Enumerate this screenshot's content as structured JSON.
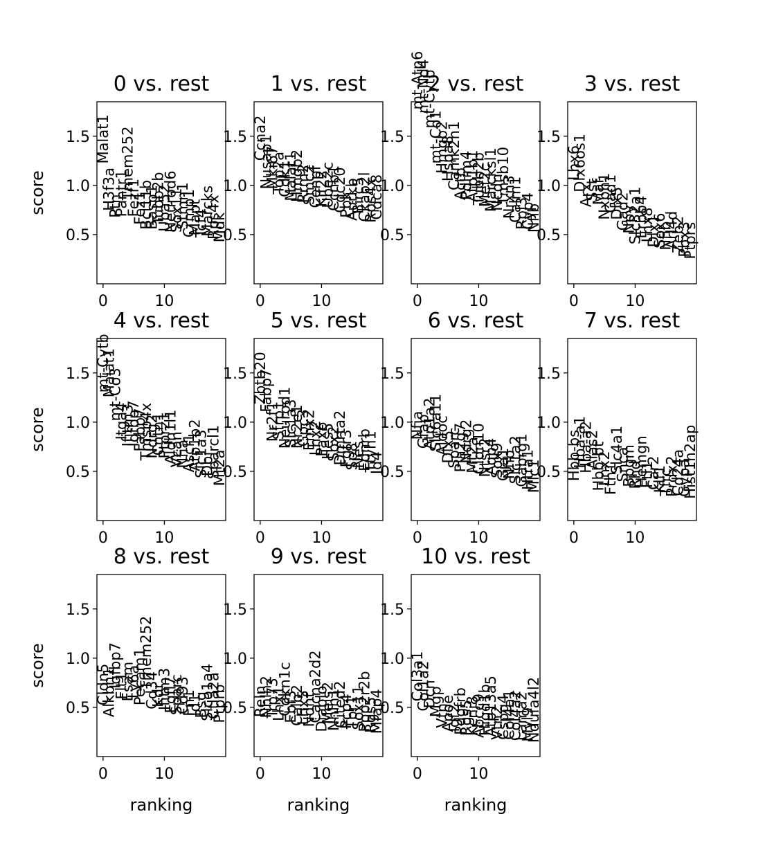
{
  "chart_data": {
    "type": "scatter",
    "description_free": true,
    "shared": {
      "ylabel": "score",
      "xlabel": "ranking",
      "ylim": [
        0.0,
        1.85
      ],
      "xlim": [
        -1,
        20
      ],
      "yticks": [
        0.5,
        1.0,
        1.5
      ],
      "xticks": [
        0,
        10
      ],
      "ytick_labels": [
        "0.5",
        "1.0",
        "1.5"
      ],
      "xtick_labels": [
        "0",
        "10"
      ]
    },
    "panels": [
      {
        "title": "0 vs. rest",
        "genes": [
          "Malat1",
          "H3f3a",
          "Ptn",
          "Pantr1",
          "Tmem252",
          "Fezf1",
          "Fez1",
          "Bcl11b",
          "Basp1",
          "Tubb2b",
          "Uba52",
          "Neurod6",
          "Sox11",
          "Stmn1",
          "Crmp1",
          "Mapt",
          "Tcf4",
          "Marcks",
          "Rps4x",
          "Mdk"
        ],
        "scores": [
          1.22,
          0.74,
          0.67,
          0.68,
          0.85,
          0.68,
          0.6,
          0.55,
          0.55,
          0.6,
          0.53,
          0.52,
          0.52,
          0.55,
          0.47,
          0.49,
          0.47,
          0.48,
          0.45,
          0.42
        ]
      },
      {
        "title": "1 vs. rest",
        "genes": [
          "Ccna2",
          "Nusap1",
          "Mki67",
          "Top2a",
          "Cdk1",
          "Malat1",
          "Hmgb2",
          "Rrm2",
          "Smc2",
          "Cenpf",
          "Kif22",
          "Ube2c",
          "Ccnb1",
          "Cdc20",
          "Pbk",
          "Aurkb",
          "Birc5",
          "Ckap2l",
          "Rps4x",
          "Cdca8"
        ],
        "scores": [
          1.25,
          0.96,
          0.96,
          0.91,
          0.88,
          0.84,
          0.83,
          0.82,
          0.8,
          0.77,
          0.78,
          0.77,
          0.74,
          0.72,
          0.67,
          0.64,
          0.71,
          0.63,
          0.62,
          0.65
        ]
      },
      {
        "title": "2 vs. rest",
        "genes": [
          "mt-Atp6",
          "mt-Nd4",
          "mt-Cytb",
          "mt-Co1",
          "Hmgb2",
          "Hspa8",
          "Camk2n1",
          "Actb",
          "Pdlim4",
          "Atp1b1",
          "Tubb2b",
          "Mef2c",
          "Marcksl1",
          "Ncdn",
          "Tmsb10",
          "Nrxn3",
          "Calm1",
          "Rpl3",
          "Cyp4",
          "Nfib"
        ],
        "scores": [
          1.77,
          1.73,
          1.58,
          1.22,
          1.12,
          1.04,
          0.95,
          0.85,
          0.85,
          0.83,
          0.8,
          0.78,
          0.73,
          0.74,
          0.8,
          0.66,
          0.62,
          0.55,
          0.55,
          0.52
        ]
      },
      {
        "title": "3 vs. rest",
        "genes": [
          "Lhx6",
          "Dlx6os1",
          "Arx",
          "Sst",
          "Maf",
          "Nxph1",
          "Gad1",
          "Dlx5",
          "Gad2",
          "Npy",
          "Slc32a1",
          "Erbb4",
          "Lhx8",
          "Dlx1",
          "Sox6",
          "Nfib",
          "Arl4d",
          "Zeb2",
          "Pbx3",
          "Ptprs"
        ],
        "scores": [
          1.05,
          0.93,
          0.78,
          0.84,
          0.8,
          0.65,
          0.72,
          0.65,
          0.54,
          0.51,
          0.4,
          0.46,
          0.42,
          0.37,
          0.36,
          0.34,
          0.35,
          0.31,
          0.27,
          0.25
        ]
      },
      {
        "title": "4 vs. rest",
        "genes": [
          "mt-Cytb",
          "Malat1",
          "mt-Co3",
          "Itga4",
          "Ifitm3",
          "Igfbp7",
          "Fabp7",
          "Tmsb4x",
          "Ndrg2",
          "Cntn1",
          "Ptprz1",
          "Aldh1l1",
          "Vcan",
          "Nfia",
          "Ascl1",
          "Atp1b2",
          "Slc1a3",
          "Dbi",
          "Sparcl1",
          "Mt2a"
        ],
        "scores": [
          1.3,
          1.25,
          1.01,
          0.82,
          0.75,
          0.75,
          0.7,
          0.61,
          0.63,
          0.66,
          0.63,
          0.57,
          0.54,
          0.53,
          0.49,
          0.5,
          0.43,
          0.45,
          0.42,
          0.35
        ]
      },
      {
        "title": "5 vs. rest",
        "genes": [
          "Zbtb20",
          "Fabp7",
          "Nr2f1",
          "Sfrp1",
          "Neurod1",
          "Slc1a3",
          "Nr2e1",
          "Gpc3",
          "Emx2",
          "Lhx2",
          "Pax6",
          "Hes5",
          "Sox2",
          "Dmrta2",
          "Fgfr3",
          "Sp8",
          "Nes",
          "Ednrb",
          "Ttyh1",
          "Id4"
        ],
        "scores": [
          1.18,
          1.1,
          0.8,
          0.82,
          0.73,
          0.74,
          0.73,
          0.75,
          0.71,
          0.66,
          0.65,
          0.62,
          0.6,
          0.56,
          0.54,
          0.51,
          0.53,
          0.5,
          0.49,
          0.47
        ]
      },
      {
        "title": "6 vs. rest",
        "genes": [
          "Nfia",
          "Gfap",
          "Atp1a2",
          "Slc6a11",
          "Aldoc",
          "Dlx5",
          "Sparc",
          "Pla2g7",
          "Ndrg2",
          "Mt2a",
          "Cldn10",
          "Ntsr2",
          "Aqp4",
          "Sox9",
          "Gja1",
          "Nfib",
          "Slc1a2",
          "Gabrg1",
          "Htra1",
          "Mlc1"
        ],
        "scores": [
          0.82,
          0.73,
          0.72,
          0.7,
          0.66,
          0.58,
          0.53,
          0.49,
          0.58,
          0.48,
          0.47,
          0.44,
          0.46,
          0.43,
          0.4,
          0.42,
          0.37,
          0.34,
          0.31,
          0.28
        ]
      },
      {
        "title": "7 vs. rest",
        "genes": [
          "Hbb-bs",
          "Hba-a1",
          "Hba-a2",
          "Alas2",
          "Hbb-bt",
          "Lnx2",
          "Fth1",
          "Slc4a1",
          "Snca",
          "Bpgm",
          "Rhd",
          "Hemgn",
          "Ftl1",
          "Car2",
          "Klf1",
          "Tfrc",
          "Prdx2",
          "Cd24a",
          "Gypa",
          "Hist1h2ap"
        ],
        "scores": [
          0.4,
          0.53,
          0.48,
          0.52,
          0.3,
          0.35,
          0.26,
          0.47,
          0.39,
          0.34,
          0.32,
          0.33,
          0.33,
          0.31,
          0.28,
          0.25,
          0.24,
          0.25,
          0.24,
          0.22
        ]
      },
      {
        "title": "8 vs. rest",
        "genes": [
          "Cldn5",
          "Alkbh1",
          "Igfbp7",
          "Flt1",
          "Esam",
          "Ly6a",
          "Pecam1",
          "Tmem252",
          "Cd34",
          "Kdr",
          "Ifitm3",
          "Egfl7",
          "Sparc",
          "Cd93",
          "Fn1",
          "Id1",
          "Bsg",
          "Slco1a4",
          "Ctla2a",
          "Ptprb"
        ],
        "scores": [
          0.52,
          0.4,
          0.69,
          0.58,
          0.56,
          0.59,
          0.52,
          0.68,
          0.48,
          0.5,
          0.47,
          0.44,
          0.42,
          0.43,
          0.41,
          0.41,
          0.39,
          0.36,
          0.38,
          0.34
        ]
      },
      {
        "title": "9 vs. rest",
        "genes": [
          "Reln",
          "Nhlh2",
          "Trp73",
          "Lhx1",
          "Cdkn1c",
          "Ebf3",
          "Calb2",
          "Lhx5",
          "Ndnf",
          "Cacna2d2",
          "Diablo",
          "Meis2",
          "Nhlh1",
          "Cited2",
          "Pcp4",
          "Tbr1",
          "Sox11",
          "Ppp2r2b",
          "Rgs5",
          "Mfap4"
        ],
        "scores": [
          0.4,
          0.39,
          0.39,
          0.36,
          0.41,
          0.34,
          0.31,
          0.32,
          0.3,
          0.34,
          0.25,
          0.33,
          0.26,
          0.29,
          0.28,
          0.28,
          0.27,
          0.25,
          0.24,
          0.23
        ]
      },
      {
        "title": "10 vs. rest",
        "genes": [
          "Col3a1",
          "Col1a2",
          "Dcn",
          "Mgp",
          "Vtn",
          "Apoe",
          "Igf2",
          "Pdgfrb",
          "Rgs5",
          "Kcnj8",
          "Abcc9",
          "Higd1b",
          "Atp13a5",
          "Vtn2",
          "Cspg4",
          "Col4a1",
          "Col4a2",
          "Lama2",
          "Myl9",
          "Ndufa4l2"
        ],
        "scores": [
          0.56,
          0.46,
          0.49,
          0.4,
          0.29,
          0.25,
          0.25,
          0.22,
          0.21,
          0.21,
          0.19,
          0.21,
          0.2,
          0.17,
          0.17,
          0.17,
          0.16,
          0.16,
          0.15,
          0.14
        ]
      }
    ]
  }
}
